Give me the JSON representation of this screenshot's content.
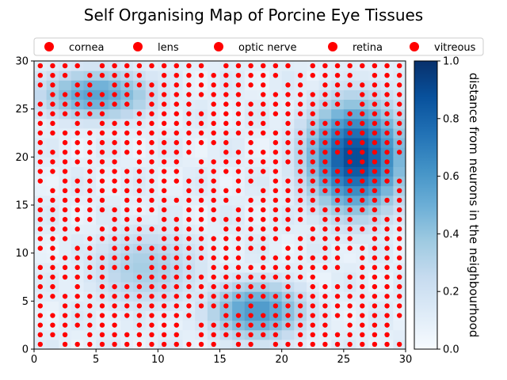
{
  "chart_data": {
    "type": "heatmap",
    "title": "Self Organising Map of Porcine Eye Tissues",
    "xlim": [
      0,
      30
    ],
    "ylim": [
      0,
      30
    ],
    "x_ticks": [
      "0",
      "5",
      "10",
      "15",
      "20",
      "25",
      "30"
    ],
    "y_ticks": [
      "0",
      "5",
      "10",
      "15",
      "20",
      "25",
      "30"
    ],
    "grid": false,
    "legend": {
      "placement": "top",
      "entries": [
        "cornea",
        "lens",
        "optic nerve",
        "retina",
        "vitreous"
      ]
    },
    "colorbar": {
      "label": "distance from neurons in the neighbourhood",
      "range": [
        0,
        1
      ],
      "ticks": [
        "0.0",
        "0.2",
        "0.4",
        "0.6",
        "0.8",
        "1.0"
      ],
      "colormap": "Blues"
    },
    "marker_color": "#ff0000",
    "grid_size": [
      30,
      30
    ],
    "high_distance_regions": [
      {
        "x": [
          0,
          10
        ],
        "y": [
          24,
          29
        ],
        "level": 0.55
      },
      {
        "x": [
          22,
          30
        ],
        "y": [
          14,
          26
        ],
        "level": 0.9
      },
      {
        "x": [
          14,
          22
        ],
        "y": [
          1,
          7
        ],
        "level": 0.6
      },
      {
        "x": [
          4,
          14
        ],
        "y": [
          4,
          13
        ],
        "level": 0.35
      }
    ],
    "neuron_markers": "red dots on most of the 30 x 30 map cells (cell centres at 0.5 ... 29.5)"
  }
}
